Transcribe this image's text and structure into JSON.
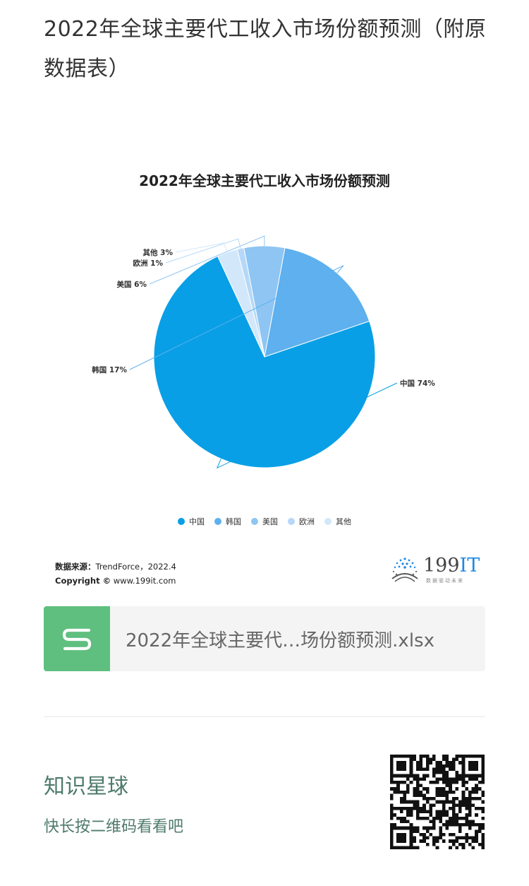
{
  "article": {
    "title": "2022年全球主要代工收入市场份额预测（附原数据表）"
  },
  "chart_data": {
    "type": "pie",
    "title": "2022年全球主要代工收入市场份额预测",
    "categories": [
      "中国",
      "韩国",
      "美国",
      "欧洲",
      "其他"
    ],
    "values": [
      74,
      17,
      6,
      1,
      3
    ],
    "value_labels": [
      "中国 74%",
      "韩国 17%",
      "美国 6%",
      "欧洲 1%",
      "其他 3%"
    ],
    "colors": [
      "#089fe6",
      "#5eb0ee",
      "#8ec5f3",
      "#b5d8f8",
      "#d3e7fb"
    ],
    "legend": {
      "position": "bottom",
      "items": [
        "中国",
        "韩国",
        "美国",
        "欧洲",
        "其他"
      ]
    }
  },
  "source": {
    "label": "数据来源：",
    "text": "TrendForce，2022.4",
    "copyright_label": "Copyright ©",
    "copyright_text": "www.199it.com"
  },
  "brand": {
    "name_main": "199",
    "name_it": "IT",
    "slogan": "数据驱动未来"
  },
  "file": {
    "icon": "spreadsheet-s-icon",
    "name": "2022年全球主要代…场份额预测.xlsx"
  },
  "knowledge_planet": {
    "title": "知识星球",
    "subtitle": "快长按二维码看看吧"
  }
}
